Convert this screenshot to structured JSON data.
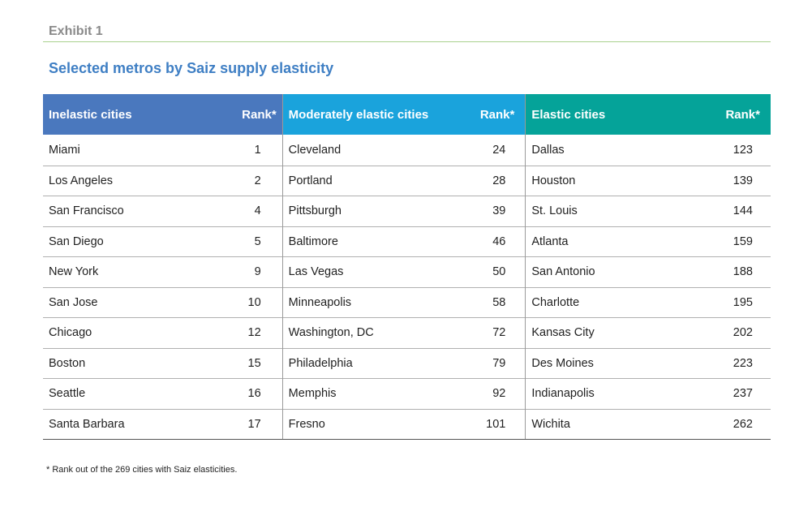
{
  "exhibit_label": "Exhibit 1",
  "title": "Selected metros by Saiz supply elasticity",
  "columns": [
    {
      "header": "Inelastic cities",
      "rank_header": "Rank*",
      "header_color": "#4a78be",
      "rows": [
        {
          "city": "Miami",
          "rank": "1"
        },
        {
          "city": "Los Angeles",
          "rank": "2"
        },
        {
          "city": "San Francisco",
          "rank": "4"
        },
        {
          "city": "San Diego",
          "rank": "5"
        },
        {
          "city": "New York",
          "rank": "9"
        },
        {
          "city": "San Jose",
          "rank": "10"
        },
        {
          "city": "Chicago",
          "rank": "12"
        },
        {
          "city": "Boston",
          "rank": "15"
        },
        {
          "city": "Seattle",
          "rank": "16"
        },
        {
          "city": "Santa Barbara",
          "rank": "17"
        }
      ]
    },
    {
      "header": "Moderately elastic cities",
      "rank_header": "Rank*",
      "header_color": "#1aa3dc",
      "rows": [
        {
          "city": "Cleveland",
          "rank": "24"
        },
        {
          "city": "Portland",
          "rank": "28"
        },
        {
          "city": "Pittsburgh",
          "rank": "39"
        },
        {
          "city": "Baltimore",
          "rank": "46"
        },
        {
          "city": "Las Vegas",
          "rank": "50"
        },
        {
          "city": "Minneapolis",
          "rank": "58"
        },
        {
          "city": "Washington, DC",
          "rank": "72"
        },
        {
          "city": "Philadelphia",
          "rank": "79"
        },
        {
          "city": "Memphis",
          "rank": "92"
        },
        {
          "city": "Fresno",
          "rank": "101"
        }
      ]
    },
    {
      "header": "Elastic cities",
      "rank_header": "Rank*",
      "header_color": "#05a399",
      "rows": [
        {
          "city": "Dallas",
          "rank": "123"
        },
        {
          "city": "Houston",
          "rank": "139"
        },
        {
          "city": "St. Louis",
          "rank": "144"
        },
        {
          "city": "Atlanta",
          "rank": "159"
        },
        {
          "city": "San Antonio",
          "rank": "188"
        },
        {
          "city": "Charlotte",
          "rank": "195"
        },
        {
          "city": "Kansas City",
          "rank": "202"
        },
        {
          "city": "Des Moines",
          "rank": "223"
        },
        {
          "city": "Indianapolis",
          "rank": "237"
        },
        {
          "city": "Wichita",
          "rank": "262"
        }
      ]
    }
  ],
  "footnote": "* Rank out of the 269 cities with Saiz elasticities."
}
